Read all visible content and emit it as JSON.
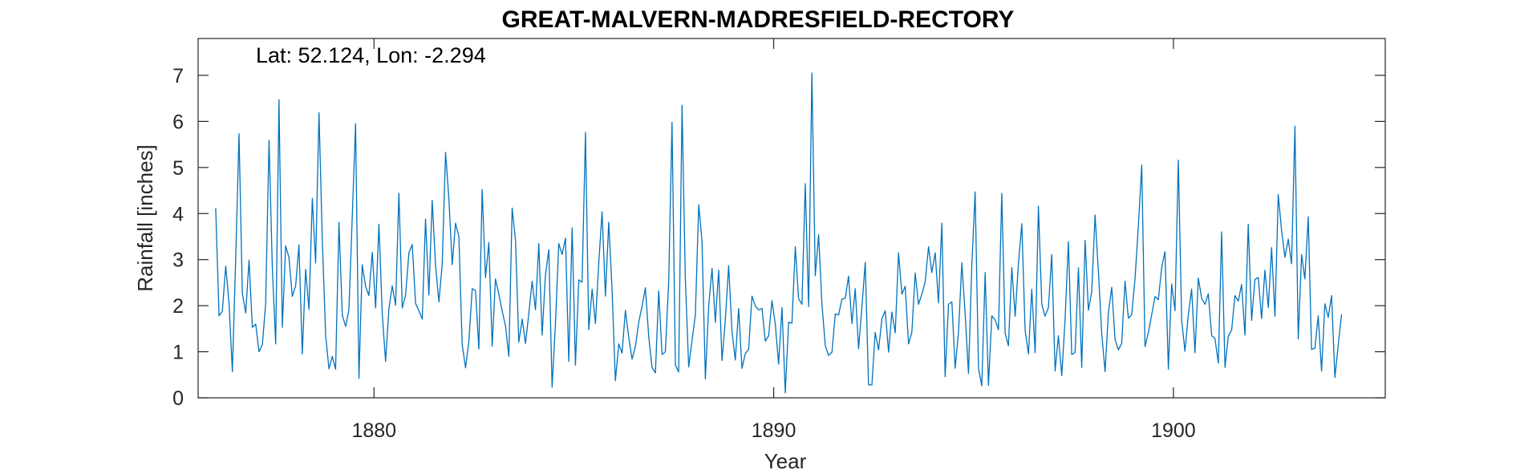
{
  "chart_data": {
    "type": "line",
    "title": "GREAT-MALVERN-MADRESFIELD-RECTORY",
    "annotation": "Lat: 52.124, Lon: -2.294",
    "xlabel": "Year",
    "ylabel": "Rainfall [inches]",
    "xlim": [
      1875.6,
      1905.3
    ],
    "ylim": [
      0,
      7.8
    ],
    "x_ticks": [
      1880,
      1890,
      1900
    ],
    "x_tick_labels": [
      "1880",
      "1890",
      "1900"
    ],
    "y_ticks": [
      0,
      1,
      2,
      3,
      4,
      5,
      6,
      7
    ],
    "y_tick_labels": [
      "0",
      "1",
      "2",
      "3",
      "4",
      "5",
      "6",
      "7"
    ],
    "grid": false,
    "color": "#0072BD",
    "series": [
      {
        "x_start": 1876.04,
        "x_step": 0.083333,
        "values": [
          4.12,
          1.78,
          1.88,
          2.86,
          2.06,
          0.57,
          3.0,
          5.73,
          2.28,
          1.84,
          2.99,
          1.53,
          1.6,
          1.0,
          1.16,
          2.04,
          5.59,
          2.83,
          1.17,
          6.47,
          1.53,
          3.3,
          3.04,
          2.2,
          2.43,
          3.32,
          0.95,
          2.79,
          1.92,
          4.33,
          2.93,
          6.19,
          3.43,
          1.35,
          0.63,
          0.9,
          0.62,
          3.81,
          1.8,
          1.55,
          1.91,
          3.95,
          5.95,
          0.42,
          2.89,
          2.42,
          2.22,
          3.16,
          1.95,
          3.77,
          1.81,
          0.79,
          1.94,
          2.43,
          2.01,
          4.44,
          1.95,
          2.22,
          3.15,
          3.33,
          2.05,
          1.89,
          1.71,
          3.88,
          2.23,
          4.29,
          2.88,
          2.08,
          2.9,
          5.33,
          4.33,
          2.89,
          3.79,
          3.5,
          1.16,
          0.65,
          1.22,
          2.37,
          2.33,
          1.06,
          4.52,
          2.61,
          3.37,
          1.12,
          2.58,
          2.25,
          1.88,
          1.56,
          0.9,
          4.12,
          3.41,
          1.21,
          1.71,
          1.18,
          1.83,
          2.53,
          1.91,
          3.35,
          1.36,
          2.66,
          3.22,
          0.23,
          1.61,
          3.35,
          3.11,
          3.47,
          0.79,
          3.69,
          0.71,
          2.56,
          2.51,
          5.76,
          1.48,
          2.36,
          1.61,
          2.93,
          4.04,
          2.21,
          3.81,
          2.33,
          0.37,
          1.17,
          0.97,
          1.9,
          1.31,
          0.84,
          1.12,
          1.64,
          1.99,
          2.39,
          1.32,
          0.66,
          0.54,
          2.32,
          0.94,
          1.0,
          2.54,
          5.98,
          0.71,
          0.56,
          6.35,
          2.58,
          0.67,
          1.25,
          1.8,
          4.19,
          3.4,
          0.41,
          1.99,
          2.81,
          1.64,
          2.77,
          0.81,
          1.7,
          2.87,
          1.44,
          0.82,
          1.94,
          0.64,
          0.96,
          1.05,
          2.21,
          1.99,
          1.91,
          1.94,
          1.23,
          1.35,
          2.11,
          1.59,
          0.73,
          1.96,
          0.11,
          1.64,
          1.62,
          3.28,
          2.15,
          2.03,
          4.65,
          1.98,
          7.05,
          2.65,
          3.54,
          2.04,
          1.13,
          0.92,
          0.99,
          1.82,
          1.8,
          2.14,
          2.16,
          2.64,
          1.61,
          2.37,
          1.06,
          1.96,
          2.94,
          0.28,
          0.28,
          1.42,
          1.04,
          1.72,
          1.89,
          0.99,
          1.86,
          1.41,
          3.15,
          2.25,
          2.42,
          1.17,
          1.42,
          2.71,
          2.03,
          2.25,
          2.52,
          3.28,
          2.72,
          3.15,
          2.06,
          3.79,
          0.46,
          2.03,
          2.08,
          0.64,
          1.43,
          2.93,
          1.81,
          0.53,
          2.89,
          4.47,
          0.64,
          0.26,
          2.72,
          0.27,
          1.78,
          1.69,
          1.48,
          4.44,
          1.4,
          1.13,
          2.83,
          1.77,
          2.92,
          3.78,
          1.47,
          0.95,
          2.36,
          0.98,
          4.16,
          2.03,
          1.77,
          1.96,
          3.11,
          0.58,
          1.35,
          0.48,
          1.69,
          3.39,
          0.94,
          0.98,
          2.82,
          0.66,
          3.42,
          1.9,
          2.31,
          3.97,
          2.73,
          1.4,
          0.57,
          1.84,
          2.4,
          1.27,
          1.04,
          1.18,
          2.53,
          1.73,
          1.8,
          2.58,
          3.72,
          5.05,
          1.11,
          1.42,
          1.8,
          2.2,
          2.13,
          2.83,
          3.17,
          0.62,
          2.47,
          1.89,
          5.16,
          1.69,
          1.01,
          1.81,
          2.36,
          0.98,
          2.6,
          2.16,
          2.03,
          2.26,
          1.35,
          1.29,
          0.75,
          3.6,
          0.66,
          1.34,
          1.47,
          2.22,
          2.1,
          2.46,
          1.36,
          3.77,
          1.68,
          2.57,
          2.61,
          1.72,
          2.77,
          1.96,
          3.26,
          1.77,
          4.41,
          3.62,
          3.05,
          3.44,
          2.91,
          5.9,
          1.28,
          3.11,
          2.58,
          3.93,
          1.05,
          1.08,
          1.78,
          0.58,
          2.04,
          1.75,
          2.22,
          0.44,
          1.15,
          1.81
        ]
      }
    ]
  }
}
